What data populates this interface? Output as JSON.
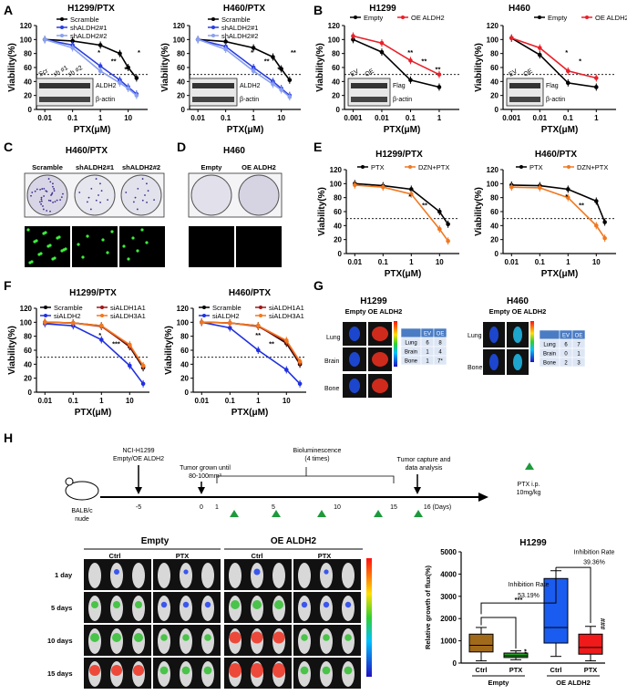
{
  "panel_letters": {
    "A": "A",
    "B": "B",
    "C": "C",
    "D": "D",
    "E": "E",
    "F": "F",
    "G": "G",
    "H": "H"
  },
  "common": {
    "x_axis": "PTX(μM)",
    "y_axis": "Viability(%)",
    "sig2": "**",
    "sig1": "*",
    "sig3": "***"
  },
  "chart_data": [
    {
      "id": "A1",
      "type": "line",
      "title": "H1299/PTX",
      "xlabel": "PTX(μM)",
      "ylabel": "Viability(%)",
      "x_scale": "log",
      "x_ticks": [
        "0.01",
        "0.1",
        "1",
        "10"
      ],
      "y_ticks": [
        "0",
        "20",
        "40",
        "60",
        "80",
        "100",
        "120"
      ],
      "ylim": [
        0,
        120
      ],
      "series": [
        {
          "name": "Scramble",
          "color": "#000000",
          "x": [
            0.01,
            0.1,
            1,
            5,
            10,
            20
          ],
          "y": [
            100,
            98,
            92,
            80,
            60,
            45
          ]
        },
        {
          "name": "shALDH2#1",
          "color": "#2b3fe0",
          "x": [
            0.01,
            0.1,
            1,
            5,
            10,
            20
          ],
          "y": [
            100,
            92,
            62,
            42,
            32,
            22
          ]
        },
        {
          "name": "shALDH2#2",
          "color": "#8aa0f0",
          "x": [
            0.01,
            0.1,
            1,
            5,
            10,
            20
          ],
          "y": [
            100,
            88,
            55,
            38,
            30,
            20
          ]
        }
      ],
      "annotations": [
        "*",
        "**",
        "*",
        "*"
      ],
      "blot": {
        "lanes": [
          "Scr",
          "sh #1",
          "sh #2"
        ],
        "bands": [
          "ALDH2",
          "β-actin"
        ]
      }
    },
    {
      "id": "A2",
      "type": "line",
      "title": "H460/PTX",
      "xlabel": "PTX(μM)",
      "ylabel": "Viability(%)",
      "x_scale": "log",
      "x_ticks": [
        "0.01",
        "0.1",
        "1",
        "10"
      ],
      "y_ticks": [
        "0",
        "20",
        "40",
        "60",
        "80",
        "100",
        "120"
      ],
      "ylim": [
        0,
        120
      ],
      "series": [
        {
          "name": "Scramble",
          "color": "#000000",
          "x": [
            0.01,
            0.1,
            1,
            5,
            10,
            20
          ],
          "y": [
            100,
            97,
            88,
            75,
            58,
            42
          ]
        },
        {
          "name": "shALDH2#1",
          "color": "#2b3fe0",
          "x": [
            0.01,
            0.1,
            1,
            5,
            10,
            20
          ],
          "y": [
            100,
            90,
            60,
            40,
            30,
            20
          ]
        },
        {
          "name": "shALDH2#2",
          "color": "#8aa0f0",
          "x": [
            0.01,
            0.1,
            1,
            5,
            10,
            20
          ],
          "y": [
            100,
            86,
            55,
            36,
            28,
            18
          ]
        }
      ],
      "annotations": [
        "*",
        "**",
        "*",
        "**"
      ],
      "blot": {
        "lanes": [],
        "bands": [
          "ALDH2",
          "β-actin"
        ]
      }
    },
    {
      "id": "B1",
      "type": "line",
      "title": "H1299",
      "xlabel": "PTX(μM)",
      "ylabel": "Viability(%)",
      "x_scale": "log",
      "x_ticks": [
        "0.001",
        "0.01",
        "0.1",
        "1"
      ],
      "y_ticks": [
        "0",
        "20",
        "40",
        "60",
        "80",
        "100",
        "120"
      ],
      "ylim": [
        0,
        120
      ],
      "series": [
        {
          "name": "Empty",
          "color": "#000000",
          "x": [
            0.001,
            0.01,
            0.1,
            1
          ],
          "y": [
            100,
            82,
            42,
            32
          ]
        },
        {
          "name": "OE ALDH2",
          "color": "#e8202a",
          "x": [
            0.001,
            0.01,
            0.1,
            1
          ],
          "y": [
            105,
            95,
            70,
            50
          ]
        }
      ],
      "annotations": [
        "**",
        "**",
        "**"
      ],
      "blot": {
        "lanes": [
          "EV",
          "OE"
        ],
        "bands": [
          "Flag",
          "β-actin"
        ]
      }
    },
    {
      "id": "B2",
      "type": "line",
      "title": "H460",
      "xlabel": "PTX(μM)",
      "ylabel": "Viability(%)",
      "x_scale": "log",
      "x_ticks": [
        "0.001",
        "0.01",
        "0.1",
        "1"
      ],
      "y_ticks": [
        "0",
        "20",
        "40",
        "60",
        "80",
        "100",
        "120"
      ],
      "ylim": [
        0,
        120
      ],
      "series": [
        {
          "name": "Empty",
          "color": "#000000",
          "x": [
            0.001,
            0.01,
            0.1,
            1
          ],
          "y": [
            102,
            78,
            38,
            32
          ]
        },
        {
          "name": "OE ALDH2",
          "color": "#e8202a",
          "x": [
            0.001,
            0.01,
            0.1,
            1
          ],
          "y": [
            102,
            88,
            55,
            45
          ]
        }
      ],
      "annotations": [
        "*",
        "*"
      ],
      "blot": {
        "lanes": [
          "EV",
          "OE"
        ],
        "bands": [
          "Flag",
          "β-actin"
        ]
      }
    },
    {
      "id": "E1",
      "type": "line",
      "title": "H1299/PTX",
      "xlabel": "PTX(μM)",
      "ylabel": "Viability(%)",
      "x_scale": "log",
      "x_ticks": [
        "0.01",
        "0.1",
        "1",
        "10"
      ],
      "y_ticks": [
        "0",
        "20",
        "40",
        "60",
        "80",
        "100",
        "120"
      ],
      "ylim": [
        0,
        120
      ],
      "series": [
        {
          "name": "PTX",
          "color": "#000000",
          "x": [
            0.01,
            0.1,
            1,
            10,
            20
          ],
          "y": [
            100,
            97,
            92,
            60,
            42
          ]
        },
        {
          "name": "DZN+PTX",
          "color": "#f07820",
          "x": [
            0.01,
            0.1,
            1,
            10,
            20
          ],
          "y": [
            98,
            95,
            85,
            35,
            18
          ]
        }
      ],
      "annotations": [
        "*",
        "**"
      ]
    },
    {
      "id": "E2",
      "type": "line",
      "title": "H460/PTX",
      "xlabel": "PTX(μM)",
      "ylabel": "Viability(%)",
      "x_scale": "log",
      "x_ticks": [
        "0.01",
        "0.1",
        "1",
        "10"
      ],
      "y_ticks": [
        "0",
        "20",
        "40",
        "60",
        "80",
        "100",
        "120"
      ],
      "ylim": [
        0,
        120
      ],
      "series": [
        {
          "name": "PTX",
          "color": "#000000",
          "x": [
            0.01,
            0.1,
            1,
            10,
            20
          ],
          "y": [
            98,
            97,
            92,
            75,
            45
          ]
        },
        {
          "name": "DZN+PTX",
          "color": "#f07820",
          "x": [
            0.01,
            0.1,
            1,
            10,
            20
          ],
          "y": [
            95,
            94,
            80,
            40,
            22
          ]
        }
      ],
      "annotations": [
        "*",
        "**"
      ]
    },
    {
      "id": "F1",
      "type": "line",
      "title": "H1299/PTX",
      "xlabel": "PTX(μM)",
      "ylabel": "Viability(%)",
      "x_scale": "log",
      "x_ticks": [
        "0.01",
        "0.1",
        "1",
        "10"
      ],
      "y_ticks": [
        "0",
        "20",
        "40",
        "60",
        "80",
        "100",
        "120"
      ],
      "ylim": [
        0,
        120
      ],
      "series": [
        {
          "name": "Scramble",
          "color": "#000000",
          "x": [
            0.01,
            0.1,
            1,
            10,
            30
          ],
          "y": [
            100,
            99,
            95,
            65,
            35
          ]
        },
        {
          "name": "siALDH1A1",
          "color": "#a01818",
          "x": [
            0.01,
            0.1,
            1,
            10,
            30
          ],
          "y": [
            100,
            99,
            94,
            66,
            37
          ]
        },
        {
          "name": "siALDH2",
          "color": "#2030e0",
          "x": [
            0.01,
            0.1,
            1,
            10,
            30
          ],
          "y": [
            98,
            95,
            75,
            38,
            12
          ]
        },
        {
          "name": "siALDH3A1",
          "color": "#f07820",
          "x": [
            0.01,
            0.1,
            1,
            10,
            30
          ],
          "y": [
            100,
            99,
            95,
            68,
            38
          ]
        }
      ],
      "annotations": [
        "*",
        "***"
      ]
    },
    {
      "id": "F2",
      "type": "line",
      "title": "H460/PTX",
      "xlabel": "PTX(μM)",
      "ylabel": "Viability(%)",
      "x_scale": "log",
      "x_ticks": [
        "0.01",
        "0.1",
        "1",
        "10"
      ],
      "y_ticks": [
        "0",
        "20",
        "40",
        "60",
        "80",
        "100",
        "120"
      ],
      "ylim": [
        0,
        120
      ],
      "series": [
        {
          "name": "Scramble",
          "color": "#000000",
          "x": [
            0.01,
            0.1,
            1,
            10,
            30
          ],
          "y": [
            100,
            99,
            95,
            70,
            40
          ]
        },
        {
          "name": "siALDH1A1",
          "color": "#a01818",
          "x": [
            0.01,
            0.1,
            1,
            10,
            30
          ],
          "y": [
            100,
            99,
            94,
            72,
            42
          ]
        },
        {
          "name": "siALDH2",
          "color": "#2030e0",
          "x": [
            0.01,
            0.1,
            1,
            10,
            30
          ],
          "y": [
            100,
            92,
            60,
            32,
            12
          ]
        },
        {
          "name": "siALDH3A1",
          "color": "#f07820",
          "x": [
            0.01,
            0.1,
            1,
            10,
            30
          ],
          "y": [
            100,
            99,
            95,
            74,
            44
          ]
        }
      ],
      "annotations": [
        "**",
        "**"
      ]
    },
    {
      "id": "H",
      "type": "bar",
      "title": "H1299",
      "ylabel": "Relative growth of flux(%)",
      "categories": [
        "Ctrl",
        "PTX",
        "Ctrl",
        "PTX"
      ],
      "groups": [
        "Empty",
        "OE ALDH2"
      ],
      "y_ticks": [
        "0",
        "1000",
        "2000",
        "3000",
        "4000",
        "5000"
      ],
      "ylim": [
        0,
        5000
      ],
      "boxes": [
        {
          "min": 100,
          "q1": 500,
          "median": 800,
          "q3": 1300,
          "max": 1600,
          "color": "#a06a1a"
        },
        {
          "min": 150,
          "q1": 250,
          "median": 330,
          "q3": 450,
          "max": 550,
          "color": "#2aa02a"
        },
        {
          "min": 300,
          "q1": 900,
          "median": 1600,
          "q3": 3800,
          "max": 4150,
          "color": "#1a5cf0"
        },
        {
          "min": 100,
          "q1": 400,
          "median": 700,
          "q3": 1300,
          "max": 1650,
          "color": "#f01a1a"
        }
      ],
      "annotations": {
        "sig_top": "***",
        "sig_empty": "**",
        "sig_oe": "###",
        "inh1": "Inhibition Rate",
        "inh1_val": "53.19%",
        "inh2": "Inhibition Rate",
        "inh2_val": "39.36%"
      }
    }
  ],
  "C": {
    "title": "H460/PTX",
    "wells": [
      "Scramble",
      "shALDH2#1",
      "shALDH2#2"
    ]
  },
  "D": {
    "title": "H460",
    "wells": [
      "Empty",
      "OE ALDH2"
    ]
  },
  "G": {
    "h1299_title": "H1299",
    "h460_title": "H460",
    "cols": "Empty OE ALDH2",
    "organs1": [
      "Lung",
      "Brain",
      "Bone"
    ],
    "organs2": [
      "Lung",
      "Bone"
    ],
    "table1": {
      "head": [
        "",
        "EV",
        "OE"
      ],
      "rows": [
        [
          "Lung",
          "6",
          "8"
        ],
        [
          "Brain",
          "1",
          "4"
        ],
        [
          "Bone",
          "1",
          "7*"
        ]
      ]
    },
    "table2": {
      "head": [
        "",
        "EV",
        "OE"
      ],
      "rows": [
        [
          "Lung",
          "6",
          "7"
        ],
        [
          "Brain",
          "0",
          "1"
        ],
        [
          "Bone",
          "2",
          "3"
        ]
      ]
    }
  },
  "H_timeline": {
    "cell": "NCI-H1299",
    "cell2": "Empty/OE ALDH2",
    "grow": "Tumor grown until",
    "grow2": "80-100mm³",
    "biolum": "Bioluminescence",
    "biolum2": "(4 times)",
    "capture": "Tumor capture and",
    "capture2": "data analysis",
    "mouse": "BALB/c",
    "mouse2": "nude",
    "ptx": "PTX  i.p.",
    "ptx2": "10mg/kg",
    "days_unit": "16 (Days)",
    "ticks": [
      "-5",
      "0",
      "1",
      "5",
      "10",
      "15"
    ]
  },
  "H_imaging": {
    "group1": "Empty",
    "group2": "OE ALDH2",
    "ctrl": "Ctrl",
    "ptx": "PTX",
    "rows": [
      "1 day",
      "5 days",
      "10 days",
      "15 days"
    ]
  }
}
